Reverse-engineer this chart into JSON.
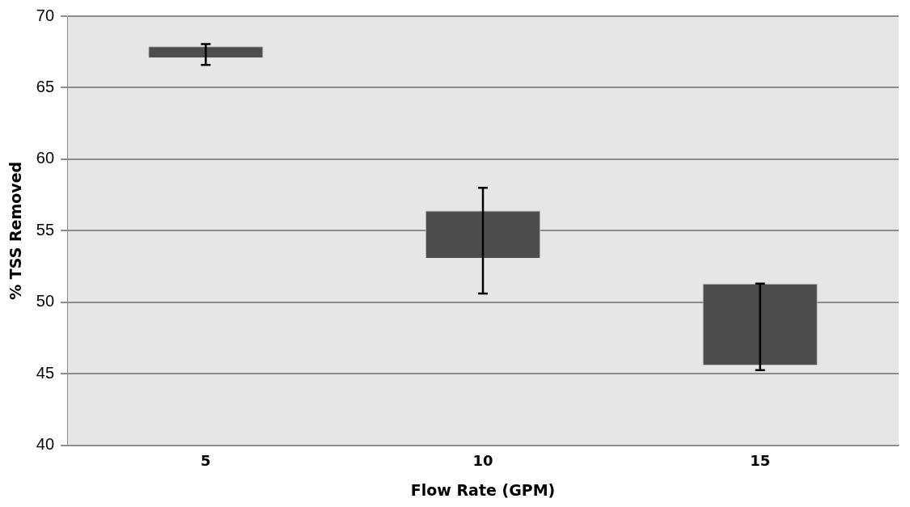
{
  "chart_data": {
    "type": "bar",
    "xlabel": "Flow Rate (GPM)",
    "ylabel": "% TSS Removed",
    "categories": [
      "5",
      "10",
      "15"
    ],
    "series": [
      {
        "color": "#4d4d4d",
        "base": [
          67.1,
          53.1,
          45.6
        ],
        "values": [
          0.8,
          3.3,
          5.7
        ],
        "errors": [
          [
            66.6,
            68.05
          ],
          [
            50.6,
            58.0
          ],
          [
            45.25,
            51.3
          ]
        ]
      }
    ],
    "ylim": [
      40,
      70
    ],
    "yticks": [
      40,
      45,
      50,
      55,
      60,
      65,
      70
    ],
    "grid": "y",
    "legend": false
  }
}
